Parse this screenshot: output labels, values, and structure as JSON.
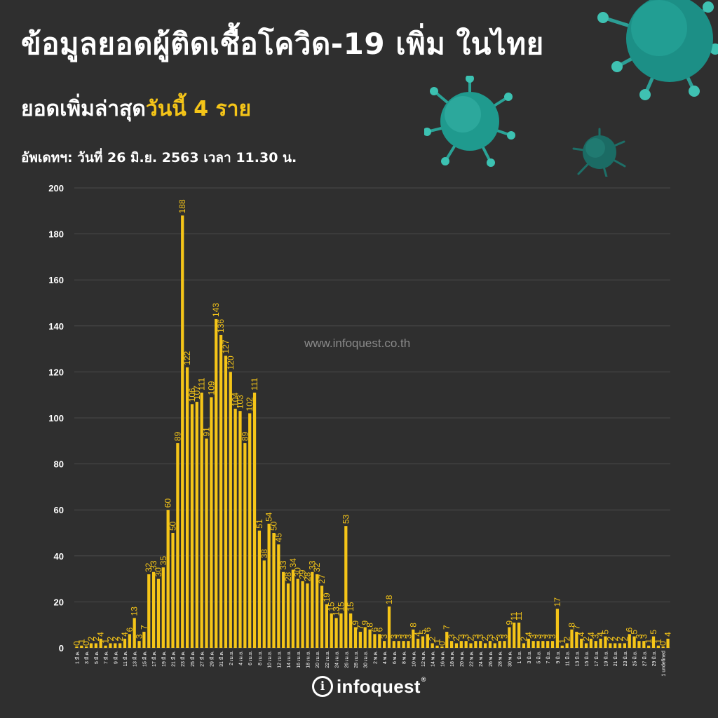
{
  "header": {
    "title": "ข้อมูลยอดผู้ติดเชื้อโควิด-19 เพิ่ม ในไทย",
    "subtitle_prefix": "ยอดเพิ่มล่าสุด",
    "subtitle_highlight": "วันนี้  4  ราย",
    "updated": "อัพเดทฯ: วันที่  26 มิ.ย. 2563 เวลา 11.30 น."
  },
  "watermark": "www.infoquest.co.th",
  "logo": {
    "mark": "i",
    "text": "infoquest",
    "reg": "®"
  },
  "colors": {
    "background": "#2f2f2f",
    "bar": "#f5c518",
    "grid": "#4a4a4a",
    "accent": "#f5c518",
    "virus": "#1fa89a"
  },
  "icons": [
    "virus-icon",
    "virus-icon",
    "virus-icon",
    "infoquest-logo-icon"
  ],
  "chart_data": {
    "type": "bar",
    "title": "",
    "xlabel": "",
    "ylabel": "",
    "ylim": [
      0,
      200
    ],
    "yticks": [
      0,
      20,
      40,
      60,
      80,
      100,
      120,
      140,
      160,
      180,
      200
    ],
    "grid": true,
    "date_format": "{d} {m}",
    "start": {
      "day": 1,
      "month": 3,
      "year": 2020
    },
    "month_abbr": {
      "3": "มี.ค.",
      "4": "เม.ย.",
      "5": "พ.ค.",
      "6": "มิ.ย."
    },
    "values": [
      0,
      1,
      0,
      2,
      2,
      4,
      1,
      2,
      2,
      2,
      4,
      6,
      13,
      3,
      7,
      32,
      33,
      30,
      35,
      60,
      50,
      89,
      188,
      122,
      106,
      107,
      111,
      91,
      109,
      143,
      136,
      127,
      120,
      104,
      103,
      89,
      102,
      111,
      51,
      38,
      54,
      50,
      45,
      33,
      28,
      34,
      30,
      29,
      28,
      33,
      32,
      27,
      19,
      15,
      13,
      15,
      53,
      15,
      9,
      7,
      9,
      8,
      6,
      6,
      3,
      18,
      3,
      3,
      3,
      3,
      8,
      4,
      5,
      6,
      2,
      1,
      0,
      7,
      3,
      2,
      3,
      3,
      2,
      3,
      3,
      2,
      3,
      2,
      3,
      3,
      9,
      11,
      11,
      2,
      4,
      3,
      3,
      3,
      3,
      3,
      17,
      1,
      2,
      8,
      7,
      4,
      2,
      4,
      3,
      4,
      5,
      2,
      2,
      2,
      2,
      6,
      5,
      3,
      3,
      1,
      5,
      1,
      0,
      4
    ]
  }
}
